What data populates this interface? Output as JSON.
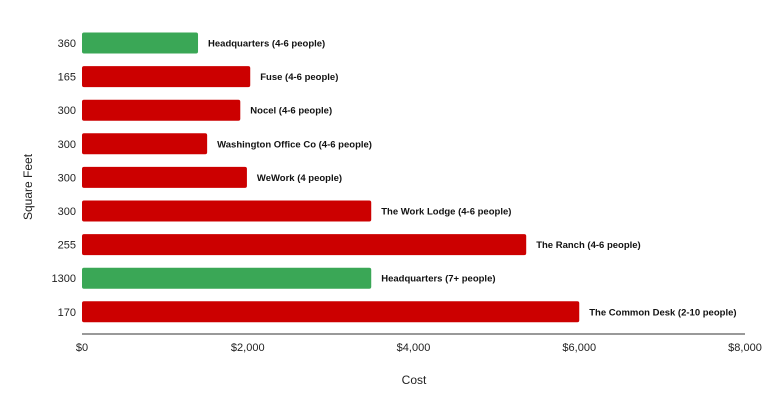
{
  "chart_data": {
    "type": "bar",
    "orientation": "horizontal",
    "xlabel": "Cost",
    "ylabel": "Square Feet",
    "xlim": [
      0,
      8000
    ],
    "x_ticks": [
      "$0",
      "$2,000",
      "$4,000",
      "$6,000",
      "$8,000"
    ],
    "x_tick_values": [
      0,
      2000,
      4000,
      6000,
      8000
    ],
    "grid": false,
    "colors": {
      "highlight": "#3aa756",
      "default": "#cc0000"
    },
    "bars": [
      {
        "category": "360",
        "value": 1400,
        "label": "Headquarters (4-6 people)",
        "highlight": true
      },
      {
        "category": "165",
        "value": 2030,
        "label": "Fuse (4-6 people)",
        "highlight": false
      },
      {
        "category": "300",
        "value": 1910,
        "label": "Nocel (4-6 people)",
        "highlight": false
      },
      {
        "category": "300",
        "value": 1510,
        "label": "Washington Office Co (4-6 people)",
        "highlight": false
      },
      {
        "category": "300",
        "value": 1990,
        "label": "WeWork (4 people)",
        "highlight": false
      },
      {
        "category": "300",
        "value": 3490,
        "label": "The Work Lodge (4-6 people)",
        "highlight": false
      },
      {
        "category": "255",
        "value": 5360,
        "label": "The Ranch (4-6 people)",
        "highlight": false
      },
      {
        "category": "1300",
        "value": 3490,
        "label": "Headquarters (7+ people)",
        "highlight": true
      },
      {
        "category": "170",
        "value": 6000,
        "label": "The Common Desk (2-10 people)",
        "highlight": false
      }
    ]
  }
}
